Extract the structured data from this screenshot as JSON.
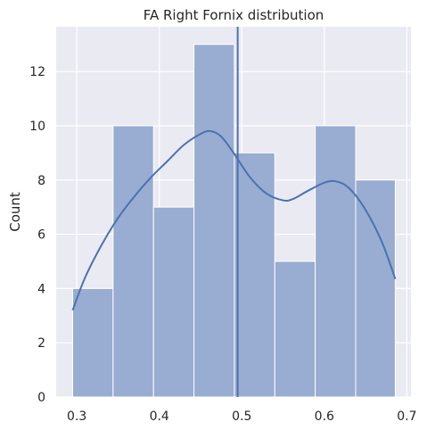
{
  "chart_data": {
    "type": "bar",
    "title": "FA Right Fornix distribution",
    "xlabel": "",
    "ylabel": "Count",
    "xlim": [
      0.275,
      0.705
    ],
    "ylim": [
      0,
      13.65
    ],
    "x_ticks": [
      "0.3",
      "0.4",
      "0.5",
      "0.6",
      "0.7"
    ],
    "x_tick_values": [
      0.3,
      0.4,
      0.5,
      0.6,
      0.7
    ],
    "y_ticks": [
      "0",
      "2",
      "4",
      "6",
      "8",
      "10",
      "12"
    ],
    "y_tick_values": [
      0,
      2,
      4,
      6,
      8,
      10,
      12
    ],
    "bins": [
      {
        "x0": 0.295,
        "x1": 0.344,
        "count": 4
      },
      {
        "x0": 0.344,
        "x1": 0.393,
        "count": 10
      },
      {
        "x0": 0.393,
        "x1": 0.442,
        "count": 7
      },
      {
        "x0": 0.442,
        "x1": 0.491,
        "count": 13
      },
      {
        "x0": 0.491,
        "x1": 0.54,
        "count": 9
      },
      {
        "x0": 0.54,
        "x1": 0.589,
        "count": 5
      },
      {
        "x0": 0.589,
        "x1": 0.638,
        "count": 10
      },
      {
        "x0": 0.638,
        "x1": 0.686,
        "count": 8
      }
    ],
    "kde": {
      "x": [
        0.295,
        0.31,
        0.33,
        0.35,
        0.37,
        0.39,
        0.41,
        0.43,
        0.45,
        0.462,
        0.475,
        0.49,
        0.51,
        0.53,
        0.55,
        0.562,
        0.58,
        0.6,
        0.614,
        0.63,
        0.65,
        0.67,
        0.686
      ],
      "y": [
        3.2,
        4.4,
        5.6,
        6.6,
        7.4,
        8.1,
        8.7,
        9.3,
        9.7,
        9.8,
        9.6,
        9.0,
        8.1,
        7.5,
        7.25,
        7.3,
        7.6,
        7.9,
        7.95,
        7.7,
        6.9,
        5.7,
        4.35
      ]
    },
    "vline": 0.495,
    "grid": true,
    "colors": {
      "bar_fill": "#99acd1",
      "bar_edge": "#ffffff",
      "kde_line": "#4c72b0",
      "vline": "#4c72b0",
      "plot_bg": "#eaeaf2",
      "grid": "#ffffff"
    }
  }
}
